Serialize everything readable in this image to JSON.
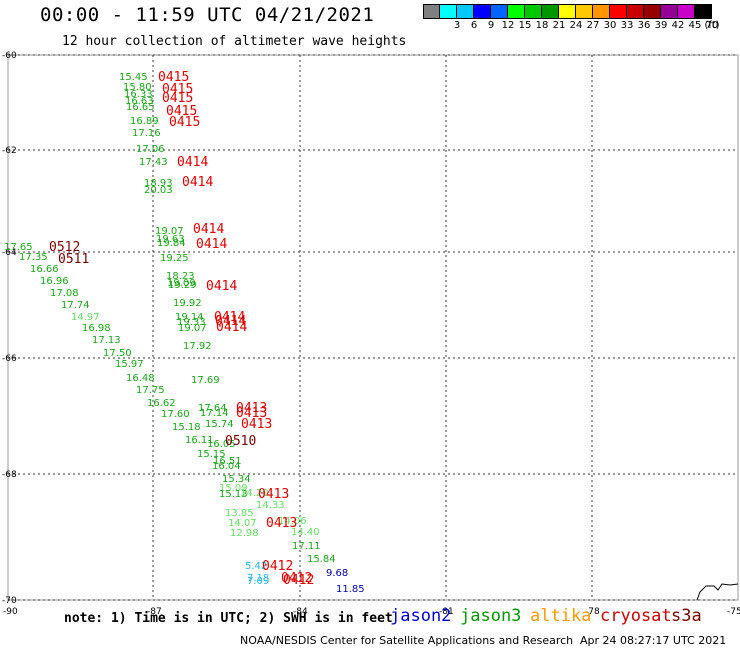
{
  "header": {
    "title": "00:00 - 11:59 UTC 04/21/2021",
    "subtitle": "12 hour collection of altimeter wave heights"
  },
  "legend": {
    "unit": "(ft)",
    "items": [
      {
        "label": "",
        "color": "#808080"
      },
      {
        "label": "3",
        "color": "#00ffff"
      },
      {
        "label": "6",
        "color": "#00c8ff"
      },
      {
        "label": "9",
        "color": "#0000ff"
      },
      {
        "label": "12",
        "color": "#0064ff"
      },
      {
        "label": "15",
        "color": "#00ff00"
      },
      {
        "label": "18",
        "color": "#00c800"
      },
      {
        "label": "21",
        "color": "#009600"
      },
      {
        "label": "24",
        "color": "#ffff00"
      },
      {
        "label": "27",
        "color": "#ffc800"
      },
      {
        "label": "30",
        "color": "#ff9600"
      },
      {
        "label": "33",
        "color": "#ff0000"
      },
      {
        "label": "36",
        "color": "#c80000"
      },
      {
        "label": "39",
        "color": "#960000"
      },
      {
        "label": "42",
        "color": "#960096"
      },
      {
        "label": "45",
        "color": "#c800c8"
      },
      {
        "label": "70",
        "color": "#000000"
      }
    ]
  },
  "map": {
    "lat_labels": [
      "-60",
      "-62",
      "-64",
      "-66",
      "-68",
      "-70"
    ],
    "lon_labels": [
      "-90",
      "-87",
      "-84",
      "-81",
      "-78",
      "-75"
    ],
    "colors": {
      "grid": "#3a3a3a",
      "green": "#1aa61a",
      "light_green": "#66dd66",
      "red": "#e00000",
      "dark_red": "#7a0000",
      "cyan": "#22bbee",
      "navy": "#0000aa"
    },
    "wave_labels": [
      {
        "text": "15.45",
        "color": "green"
      },
      {
        "text": "15.80",
        "color": "green"
      },
      {
        "text": "16.33",
        "color": "green"
      },
      {
        "text": "16.63",
        "color": "green"
      },
      {
        "text": "16.65",
        "color": "green"
      },
      {
        "text": "16.89",
        "color": "green"
      },
      {
        "text": "17.16",
        "color": "green"
      },
      {
        "text": "17.06",
        "color": "green"
      },
      {
        "text": "17.43",
        "color": "green"
      },
      {
        "text": "18.93",
        "color": "green"
      },
      {
        "text": "20.03",
        "color": "green"
      },
      {
        "text": "19.07",
        "color": "green"
      },
      {
        "text": "19.63",
        "color": "green"
      },
      {
        "text": "19.84",
        "color": "green"
      },
      {
        "text": "19.25",
        "color": "green"
      },
      {
        "text": "18.23",
        "color": "green"
      },
      {
        "text": "19.09",
        "color": "green"
      },
      {
        "text": "19.29",
        "color": "green"
      },
      {
        "text": "19.92",
        "color": "green"
      },
      {
        "text": "19.14",
        "color": "green"
      },
      {
        "text": "19.33",
        "color": "green"
      },
      {
        "text": "19.07",
        "color": "green"
      },
      {
        "text": "17.92",
        "color": "green"
      },
      {
        "text": "17.69",
        "color": "green"
      },
      {
        "text": "17.65",
        "color": "green"
      },
      {
        "text": "17.35",
        "color": "green"
      },
      {
        "text": "16.66",
        "color": "green"
      },
      {
        "text": "16.96",
        "color": "green"
      },
      {
        "text": "17.08",
        "color": "green"
      },
      {
        "text": "17.74",
        "color": "green"
      },
      {
        "text": "14.97",
        "color": "light_green"
      },
      {
        "text": "16.98",
        "color": "green"
      },
      {
        "text": "17.13",
        "color": "green"
      },
      {
        "text": "17.50",
        "color": "green"
      },
      {
        "text": "15.97",
        "color": "green"
      },
      {
        "text": "16.48",
        "color": "green"
      },
      {
        "text": "17.75",
        "color": "green"
      },
      {
        "text": "16.62",
        "color": "green"
      },
      {
        "text": "17.60",
        "color": "green"
      },
      {
        "text": "17.64",
        "color": "green"
      },
      {
        "text": "17.14",
        "color": "green"
      },
      {
        "text": "15.18",
        "color": "green"
      },
      {
        "text": "15.74",
        "color": "green"
      },
      {
        "text": "16.11",
        "color": "green"
      },
      {
        "text": "16.05",
        "color": "green"
      },
      {
        "text": "15.15",
        "color": "green"
      },
      {
        "text": "16.51",
        "color": "green"
      },
      {
        "text": "16.04",
        "color": "green"
      },
      {
        "text": "15.34",
        "color": "green"
      },
      {
        "text": "15.09",
        "color": "light_green"
      },
      {
        "text": "15.13",
        "color": "green"
      },
      {
        "text": "14.20",
        "color": "light_green"
      },
      {
        "text": "14.33",
        "color": "light_green"
      },
      {
        "text": "13.85",
        "color": "light_green"
      },
      {
        "text": "14.07",
        "color": "light_green"
      },
      {
        "text": "14.06",
        "color": "light_green"
      },
      {
        "text": "12.98",
        "color": "light_green"
      },
      {
        "text": "14.40",
        "color": "light_green"
      },
      {
        "text": "17.11",
        "color": "green"
      },
      {
        "text": "15.84",
        "color": "green"
      },
      {
        "text": "5.42",
        "color": "cyan"
      },
      {
        "text": "7.18",
        "color": "cyan"
      },
      {
        "text": "7.09",
        "color": "cyan"
      },
      {
        "text": "9.68",
        "color": "navy"
      },
      {
        "text": "11.85",
        "color": "navy"
      }
    ],
    "time_labels": [
      {
        "text": "0415",
        "color": "red"
      },
      {
        "text": "0415",
        "color": "red"
      },
      {
        "text": "0415",
        "color": "red"
      },
      {
        "text": "0415",
        "color": "red"
      },
      {
        "text": "0415",
        "color": "red"
      },
      {
        "text": "0414",
        "color": "red"
      },
      {
        "text": "0414",
        "color": "red"
      },
      {
        "text": "0414",
        "color": "red"
      },
      {
        "text": "0414",
        "color": "red"
      },
      {
        "text": "0414",
        "color": "red"
      },
      {
        "text": "0414",
        "color": "red"
      },
      {
        "text": "0414",
        "color": "red"
      },
      {
        "text": "0414",
        "color": "red"
      },
      {
        "text": "0512",
        "color": "dark_red"
      },
      {
        "text": "0511",
        "color": "dark_red"
      },
      {
        "text": "0413",
        "color": "red"
      },
      {
        "text": "0413",
        "color": "red"
      },
      {
        "text": "0413",
        "color": "red"
      },
      {
        "text": "0510",
        "color": "dark_red"
      },
      {
        "text": "0413",
        "color": "red"
      },
      {
        "text": "0413",
        "color": "red"
      },
      {
        "text": "0412",
        "color": "red"
      },
      {
        "text": "0412",
        "color": "red"
      },
      {
        "text": "0412",
        "color": "red"
      }
    ]
  },
  "footer": {
    "note": "note: 1) Time is in UTC; 2) SWH is in feet",
    "satellites": [
      {
        "name": "jason2",
        "color": "#0000cc"
      },
      {
        "name": "jason3",
        "color": "#009900"
      },
      {
        "name": "altika",
        "color": "#ff9900"
      },
      {
        "name": "cryosat",
        "color": "#cc0000"
      },
      {
        "name": "s3a",
        "color": "#7a0000"
      }
    ],
    "credit": "NOAA/NESDIS Center for Satellite Applications and Research",
    "timestamp": "Apr 24 08:27:17 UTC 2021"
  }
}
